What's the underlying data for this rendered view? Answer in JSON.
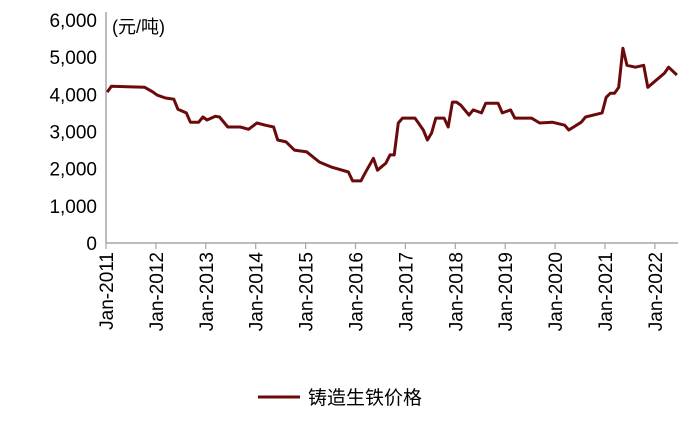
{
  "chart_data": {
    "type": "line",
    "unit_label": "(元/吨)",
    "ylim": [
      0,
      6000
    ],
    "yticks": [
      "0",
      "1,000",
      "2,000",
      "3,000",
      "4,000",
      "5,000",
      "6,000"
    ],
    "ytick_values": [
      0,
      1000,
      2000,
      3000,
      4000,
      5000,
      6000
    ],
    "xlim": [
      "2011-01",
      "2022-07"
    ],
    "xticks": [
      "Jan-2011",
      "Jan-2012",
      "Jan-2013",
      "Jan-2014",
      "Jan-2015",
      "Jan-2016",
      "Jan-2017",
      "Jan-2018",
      "Jan-2019",
      "Jan-2020",
      "Jan-2021",
      "Jan-2022"
    ],
    "grid": false,
    "legend_position": "bottom",
    "colors": {
      "series": "#6b0a0a",
      "axis": "#a6a6a6"
    },
    "series": [
      {
        "name": "铸造生铁价格",
        "x": [
          "2011-01",
          "2011-02",
          "2011-10",
          "2011-12",
          "2012-01",
          "2012-03",
          "2012-05",
          "2012-06",
          "2012-08",
          "2012-09",
          "2012-11",
          "2012-12",
          "2013-01",
          "2013-03",
          "2013-04",
          "2013-06",
          "2013-09",
          "2013-11",
          "2014-01",
          "2014-03",
          "2014-05",
          "2014-06",
          "2014-08",
          "2014-10",
          "2015-01",
          "2015-04",
          "2015-07",
          "2015-11",
          "2015-12",
          "2016-02",
          "2016-03",
          "2016-05",
          "2016-06",
          "2016-08",
          "2016-09",
          "2016-10",
          "2016-11",
          "2016-12",
          "2017-03",
          "2017-05",
          "2017-06",
          "2017-07",
          "2017-08",
          "2017-10",
          "2017-11",
          "2017-12",
          "2018-01",
          "2018-02",
          "2018-04",
          "2018-05",
          "2018-07",
          "2018-08",
          "2018-11",
          "2018-12",
          "2019-02",
          "2019-03",
          "2019-07",
          "2019-09",
          "2019-12",
          "2020-03",
          "2020-04",
          "2020-07",
          "2020-08",
          "2020-12",
          "2021-01",
          "2021-02",
          "2021-03",
          "2021-04",
          "2021-05",
          "2021-06",
          "2021-08",
          "2021-10",
          "2021-11",
          "2022-03",
          "2022-04",
          "2022-06"
        ],
        "values": [
          4060,
          4220,
          4190,
          4060,
          3980,
          3900,
          3870,
          3600,
          3500,
          3250,
          3250,
          3390,
          3310,
          3410,
          3390,
          3120,
          3120,
          3060,
          3230,
          3170,
          3120,
          2770,
          2720,
          2500,
          2450,
          2180,
          2040,
          1910,
          1670,
          1670,
          1880,
          2280,
          1960,
          2150,
          2370,
          2370,
          3230,
          3360,
          3360,
          3040,
          2770,
          2960,
          3360,
          3360,
          3120,
          3790,
          3790,
          3710,
          3440,
          3580,
          3500,
          3760,
          3760,
          3500,
          3580,
          3360,
          3360,
          3230,
          3250,
          3170,
          3040,
          3250,
          3390,
          3500,
          3920,
          4030,
          4030,
          4190,
          5240,
          4780,
          4730,
          4780,
          4190,
          4570,
          4730,
          4520
        ]
      }
    ]
  }
}
